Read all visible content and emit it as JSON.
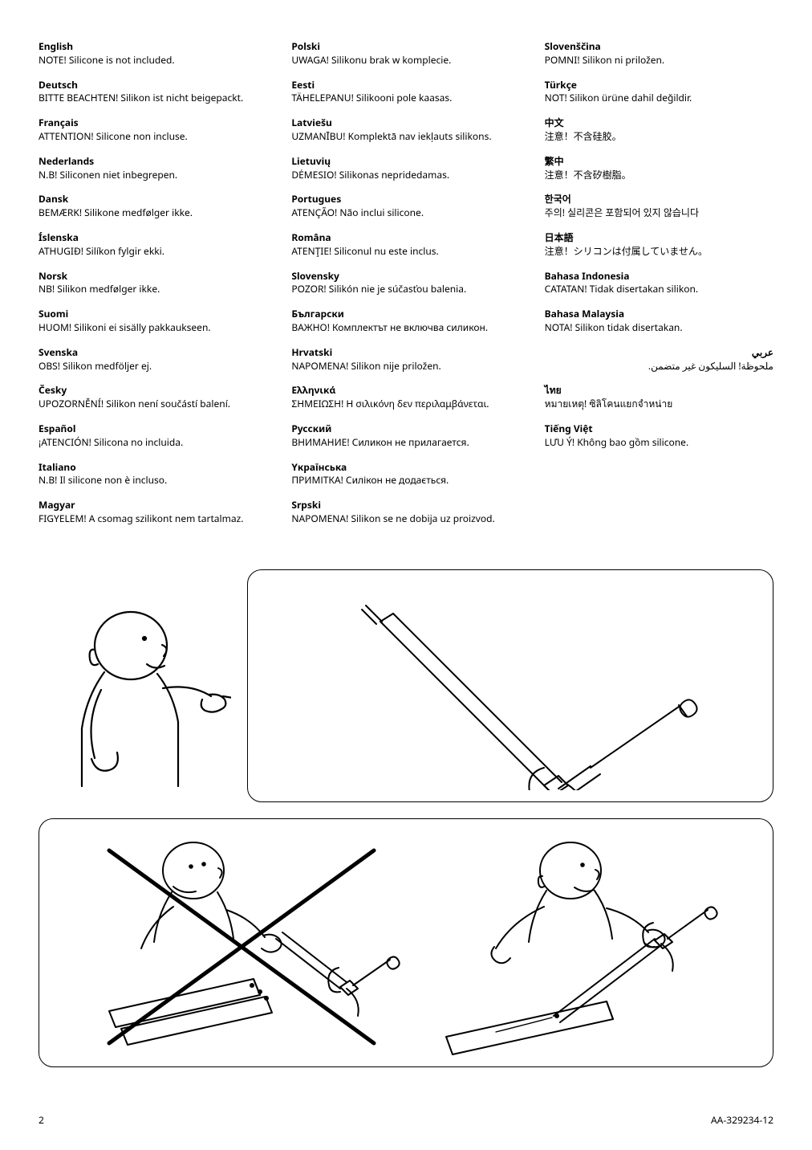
{
  "columns": [
    [
      {
        "lang": "English",
        "text": "NOTE! Silicone is not included."
      },
      {
        "lang": "Deutsch",
        "text": "BITTE BEACHTEN! Silikon ist nicht beigepackt."
      },
      {
        "lang": "Français",
        "text": "ATTENTION! Silicone non incluse."
      },
      {
        "lang": "Nederlands",
        "text": "N.B! Siliconen niet inbegrepen."
      },
      {
        "lang": "Dansk",
        "text": "BEMÆRK! Silikone medfølger ikke."
      },
      {
        "lang": "Íslenska",
        "text": "ATHUGIÐ! Silíkon fylgir ekki."
      },
      {
        "lang": "Norsk",
        "text": "NB! Silikon medfølger ikke."
      },
      {
        "lang": "Suomi",
        "text": "HUOM! Silikoni ei sisälly pakkaukseen."
      },
      {
        "lang": "Svenska",
        "text": "OBS! Silikon medföljer ej."
      },
      {
        "lang": "Česky",
        "text": "UPOZORNĚNÍ! Silikon není součástí balení."
      },
      {
        "lang": "Español",
        "text": "¡ATENCIÓN! Silicona no incluida."
      },
      {
        "lang": "Italiano",
        "text": "N.B! Il silicone non è incluso."
      },
      {
        "lang": "Magyar",
        "text": "FIGYELEM! A csomag szilikont nem tartalmaz."
      }
    ],
    [
      {
        "lang": "Polski",
        "text": "UWAGA! Silikonu brak w komplecie."
      },
      {
        "lang": "Eesti",
        "text": "TÄHELEPANU! Silikooni pole kaasas."
      },
      {
        "lang": "Latviešu",
        "text": "UZMANĪBU! Komplektā nav iekļauts silikons."
      },
      {
        "lang": "Lietuvių",
        "text": "DĖMESIO! Silikonas nepridedamas."
      },
      {
        "lang": "Portugues",
        "text": "ATENÇÃO! Não inclui silicone."
      },
      {
        "lang": "Româna",
        "text": "ATENŢIE! Siliconul nu este inclus."
      },
      {
        "lang": "Slovensky",
        "text": "POZOR! Silikón nie je súčasťou balenia."
      },
      {
        "lang": "Български",
        "text": "ВАЖНО! Комплектът не включва силикон."
      },
      {
        "lang": "Hrvatski",
        "text": "NAPOMENA! Silikon nije priložen."
      },
      {
        "lang": "Ελληνικά",
        "text": "ΣΗΜΕΙΩΣΗ! Η σιλικόνη δεν περιλαμβάνεται."
      },
      {
        "lang": "Русский",
        "text": "ВНИМАНИЕ! Силикон не прилагается."
      },
      {
        "lang": "Yкраїнська",
        "text": "ПРИМІТКА! Силікон не додається."
      },
      {
        "lang": "Srpski",
        "text": "NAPOMENA! Silikon se ne dobija uz proizvod."
      }
    ],
    [
      {
        "lang": "Slovenščina",
        "text": "POMNI! Silikon ni priložen."
      },
      {
        "lang": "Türkçe",
        "text": "NOT! Silikon ürüne dahil değildir."
      },
      {
        "lang": "中文",
        "text": "注意！不含硅胶。"
      },
      {
        "lang": "繁中",
        "text": "注意！不含矽樹脂。"
      },
      {
        "lang": "한국어",
        "text": "주의! 실리콘은 포함되어 있지 않습니다"
      },
      {
        "lang": "日本語",
        "text": "注意！シリコンは付属していません。"
      },
      {
        "lang": "Bahasa Indonesia",
        "text": "CATATAN! Tidak disertakan silikon."
      },
      {
        "lang": "Bahasa Malaysia",
        "text": "NOTA! Silikon tidak disertakan."
      },
      {
        "lang": "عربي",
        "text": "ملحوظة! السليكون غير متضمن.",
        "rtl": true
      },
      {
        "lang": "ไทย",
        "text": "หมายเหตุ! ซิลิโคนแยกจำหน่าย"
      },
      {
        "lang": "Tiếng Việt",
        "text": "LƯU Ý! Không bao gồm silicone."
      }
    ]
  ],
  "footer": {
    "page": "2",
    "doc_id": "AA-329234-12"
  },
  "style": {
    "text_color": "#000000",
    "background": "#ffffff",
    "font_size_pt": 9,
    "line_stroke": "#000000",
    "line_width": 1.2,
    "box_radius": 18
  }
}
